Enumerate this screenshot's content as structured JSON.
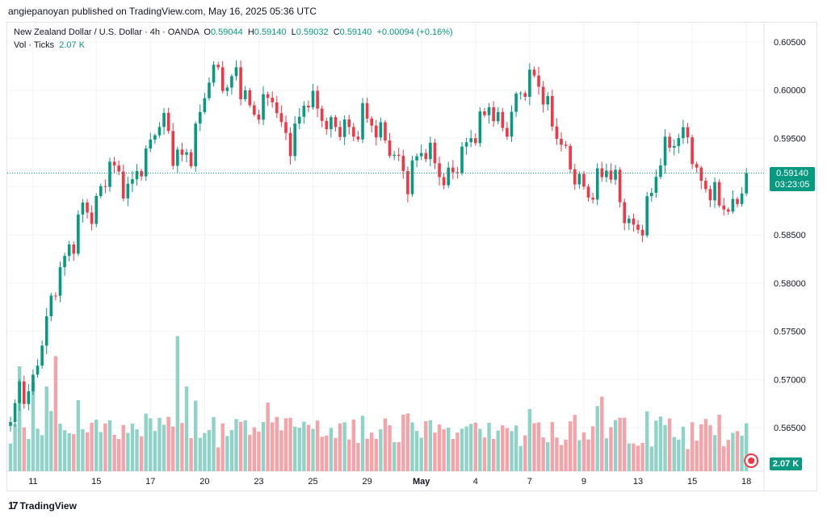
{
  "header": {
    "published": "angiepanoyan published on TradingView.com, May 16, 2025 05:36 UTC"
  },
  "legend": {
    "symbol": "New Zealand Dollar / U.S. Dollar · 4h · OANDA",
    "o_label": "O",
    "o_value": "0.59044",
    "h_label": "H",
    "h_value": "0.59140",
    "l_label": "L",
    "l_value": "0.59032",
    "c_label": "C",
    "c_value": "0.59140",
    "change": "+0.00094 (+0.16%)",
    "vol_label": "Vol · Ticks",
    "vol_value": "2.07 K"
  },
  "badges": {
    "price": "0.59140",
    "countdown": "03:23:05",
    "volume": "2.07 K"
  },
  "footer": {
    "brand": "TradingView"
  },
  "colors": {
    "up": "#089981",
    "down": "#f23645",
    "up_vol": "#8fd3c8",
    "down_vol": "#f5a3a8",
    "grid": "#f0f3fa"
  },
  "chart_data": {
    "type": "candlestick",
    "ylim": [
      0.5605,
      0.607
    ],
    "y_ticks": [
      "0.60500",
      "0.60000",
      "0.59500",
      "0.59000",
      "0.58500",
      "0.58000",
      "0.57500",
      "0.57000",
      "0.56500"
    ],
    "y_tick_values": [
      0.605,
      0.6,
      0.595,
      0.59,
      0.585,
      0.58,
      0.575,
      0.57,
      0.565
    ],
    "x_ticks": [
      {
        "label": "11",
        "index": 5
      },
      {
        "label": "15",
        "index": 19
      },
      {
        "label": "17",
        "index": 31
      },
      {
        "label": "20",
        "index": 43
      },
      {
        "label": "23",
        "index": 55
      },
      {
        "label": "25",
        "index": 67
      },
      {
        "label": "29",
        "index": 79
      },
      {
        "label": "May",
        "index": 91
      },
      {
        "label": "4",
        "index": 103
      },
      {
        "label": "7",
        "index": 115
      },
      {
        "label": "9",
        "index": 127
      },
      {
        "label": "13",
        "index": 139
      },
      {
        "label": "15",
        "index": 151
      },
      {
        "label": "18",
        "index": 163
      }
    ],
    "last_price": 0.5914,
    "anchors": [
      [
        0,
        0.565
      ],
      [
        2,
        0.5695
      ],
      [
        4,
        0.568
      ],
      [
        6,
        0.572
      ],
      [
        8,
        0.576
      ],
      [
        10,
        0.58
      ],
      [
        12,
        0.5825
      ],
      [
        14,
        0.5845
      ],
      [
        16,
        0.588
      ],
      [
        18,
        0.587
      ],
      [
        20,
        0.5895
      ],
      [
        22,
        0.5925
      ],
      [
        24,
        0.591
      ],
      [
        26,
        0.5895
      ],
      [
        28,
        0.5915
      ],
      [
        30,
        0.593
      ],
      [
        32,
        0.596
      ],
      [
        34,
        0.597
      ],
      [
        36,
        0.5935
      ],
      [
        38,
        0.593
      ],
      [
        40,
        0.5935
      ],
      [
        42,
        0.5975
      ],
      [
        44,
        0.6015
      ],
      [
        46,
        0.602
      ],
      [
        48,
        0.6
      ],
      [
        50,
        0.602
      ],
      [
        52,
        0.599
      ],
      [
        54,
        0.5975
      ],
      [
        56,
        0.5985
      ],
      [
        58,
        0.5995
      ],
      [
        60,
        0.596
      ],
      [
        62,
        0.5945
      ],
      [
        64,
        0.597
      ],
      [
        66,
        0.5995
      ],
      [
        68,
        0.598
      ],
      [
        70,
        0.5965
      ],
      [
        72,
        0.596
      ],
      [
        74,
        0.5965
      ],
      [
        76,
        0.595
      ],
      [
        78,
        0.5975
      ],
      [
        80,
        0.5965
      ],
      [
        82,
        0.5955
      ],
      [
        84,
        0.594
      ],
      [
        86,
        0.5925
      ],
      [
        88,
        0.5905
      ],
      [
        90,
        0.593
      ],
      [
        92,
        0.594
      ],
      [
        94,
        0.5925
      ],
      [
        96,
        0.5905
      ],
      [
        98,
        0.5915
      ],
      [
        100,
        0.5935
      ],
      [
        102,
        0.595
      ],
      [
        104,
        0.5965
      ],
      [
        106,
        0.5985
      ],
      [
        108,
        0.5965
      ],
      [
        110,
        0.596
      ],
      [
        112,
        0.599
      ],
      [
        114,
        0.6005
      ],
      [
        116,
        0.6015
      ],
      [
        118,
        0.5995
      ],
      [
        120,
        0.5965
      ],
      [
        122,
        0.5945
      ],
      [
        124,
        0.592
      ],
      [
        126,
        0.5905
      ],
      [
        128,
        0.589
      ],
      [
        130,
        0.5905
      ],
      [
        132,
        0.592
      ],
      [
        134,
        0.5905
      ],
      [
        136,
        0.587
      ],
      [
        138,
        0.5855
      ],
      [
        140,
        0.586
      ],
      [
        142,
        0.5895
      ],
      [
        144,
        0.593
      ],
      [
        146,
        0.5945
      ],
      [
        148,
        0.595
      ],
      [
        150,
        0.5955
      ],
      [
        152,
        0.591
      ],
      [
        154,
        0.59
      ],
      [
        156,
        0.589
      ],
      [
        158,
        0.588
      ],
      [
        160,
        0.5875
      ],
      [
        162,
        0.59
      ],
      [
        163,
        0.5914
      ]
    ],
    "volume_scale_max": 8000,
    "volume_spikes": [
      [
        2,
        5200
      ],
      [
        5,
        4400
      ],
      [
        8,
        4200
      ],
      [
        10,
        5700
      ],
      [
        18,
        2400
      ],
      [
        26,
        1900
      ],
      [
        37,
        6700
      ],
      [
        39,
        4200
      ],
      [
        41,
        3500
      ],
      [
        57,
        3400
      ],
      [
        98,
        1600
      ],
      [
        104,
        2100
      ],
      [
        131,
        3700
      ],
      [
        140,
        1400
      ],
      [
        150,
        1100
      ],
      [
        160,
        1900
      ]
    ]
  }
}
